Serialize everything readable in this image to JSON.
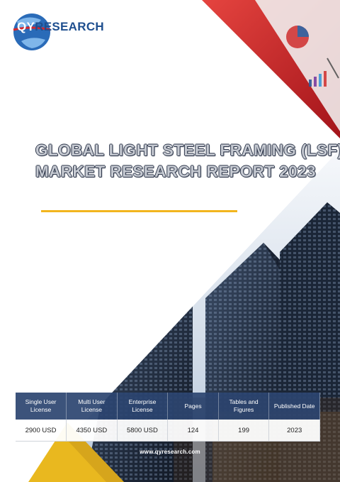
{
  "brand": {
    "logo_prefix": "QY",
    "logo_rest": "RESEARCH"
  },
  "report": {
    "title_line1": "GLOBAL LIGHT STEEL FRAMING (LSF)",
    "title_line2": "MARKET RESEARCH REPORT 2023"
  },
  "info_table": {
    "headers": [
      "Single User License",
      "Multi User License",
      "Enterprise License",
      "Pages",
      "Tables and Figures",
      "Published Date"
    ],
    "values": [
      "2900 USD",
      "4350 USD",
      "5800 USD",
      "124",
      "199",
      "2023"
    ]
  },
  "footer": {
    "website": "www.qyresearch.com"
  },
  "colors": {
    "accent_red": "#d8262c",
    "brand_blue": "#1f4f8f",
    "table_header": "#2b4470",
    "divider_gold": "#f2b51e"
  }
}
